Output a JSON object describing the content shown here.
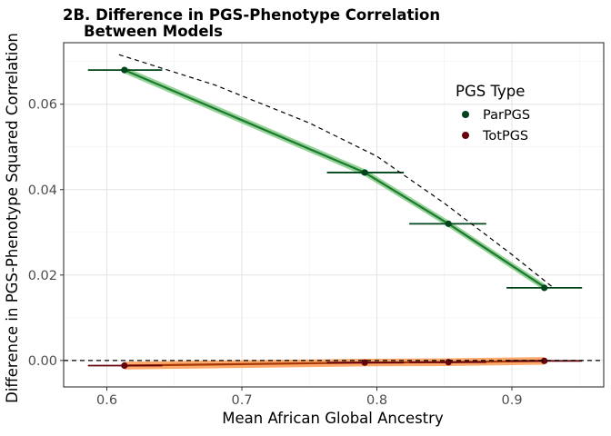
{
  "chart_data": {
    "type": "line",
    "title_line1": "2B. Difference in PGS-Phenotype Correlation",
    "title_line2": "Between Models",
    "xlabel": "Mean African Global Ancestry",
    "ylabel": "Difference in PGS-Phenotype Squared Correlation",
    "xlim": [
      0.568,
      0.968
    ],
    "ylim": [
      -0.0062,
      0.0744
    ],
    "x_ticks": [
      0.6,
      0.7,
      0.8,
      0.9
    ],
    "x_tick_labels": [
      "0.6",
      "0.7",
      "0.8",
      "0.9"
    ],
    "y_ticks": [
      0.0,
      0.02,
      0.04,
      0.06
    ],
    "y_tick_labels": [
      "0.00",
      "0.02",
      "0.04",
      "0.06"
    ],
    "grid": true,
    "reference_hline": 0,
    "legend": {
      "title": "PGS Type",
      "position": "top-right"
    },
    "series": [
      {
        "name": "ParPGS",
        "point_color": "#00441b",
        "line_color": "#1b7a2e",
        "band_color": "#74c476",
        "points": [
          {
            "x": 0.613,
            "y": 0.068,
            "xmin": 0.586,
            "xmax": 0.641
          },
          {
            "x": 0.791,
            "y": 0.044,
            "xmin": 0.763,
            "xmax": 0.82
          },
          {
            "x": 0.853,
            "y": 0.032,
            "xmin": 0.824,
            "xmax": 0.881
          },
          {
            "x": 0.924,
            "y": 0.017,
            "xmin": 0.896,
            "xmax": 0.952
          }
        ],
        "fit_line": [
          [
            0.613,
            0.068
          ],
          [
            0.791,
            0.044
          ],
          [
            0.853,
            0.032
          ],
          [
            0.924,
            0.0172
          ]
        ],
        "band_halfwidth": 0.0008
      },
      {
        "name": "TotPGS",
        "point_color": "#67000d",
        "line_color": "#a63603",
        "band_color": "#fd8d3c",
        "points": [
          {
            "x": 0.613,
            "y": -0.0012,
            "xmin": 0.586,
            "xmax": 0.641
          },
          {
            "x": 0.791,
            "y": -0.0005,
            "xmin": 0.763,
            "xmax": 0.82
          },
          {
            "x": 0.853,
            "y": -0.0004,
            "xmin": 0.824,
            "xmax": 0.881
          },
          {
            "x": 0.924,
            "y": -0.0001,
            "xmin": 0.896,
            "xmax": 0.952
          }
        ],
        "fit_line": [
          [
            0.613,
            -0.0012
          ],
          [
            0.791,
            -0.0005
          ],
          [
            0.853,
            -0.0004
          ],
          [
            0.924,
            -0.0001
          ]
        ],
        "band_halfwidth": 0.0009
      }
    ],
    "dashed_curve": [
      [
        0.609,
        0.0716
      ],
      [
        0.68,
        0.0645
      ],
      [
        0.75,
        0.0556
      ],
      [
        0.8,
        0.0478
      ],
      [
        0.85,
        0.0368
      ],
      [
        0.9,
        0.0248
      ],
      [
        0.93,
        0.0172
      ]
    ]
  }
}
